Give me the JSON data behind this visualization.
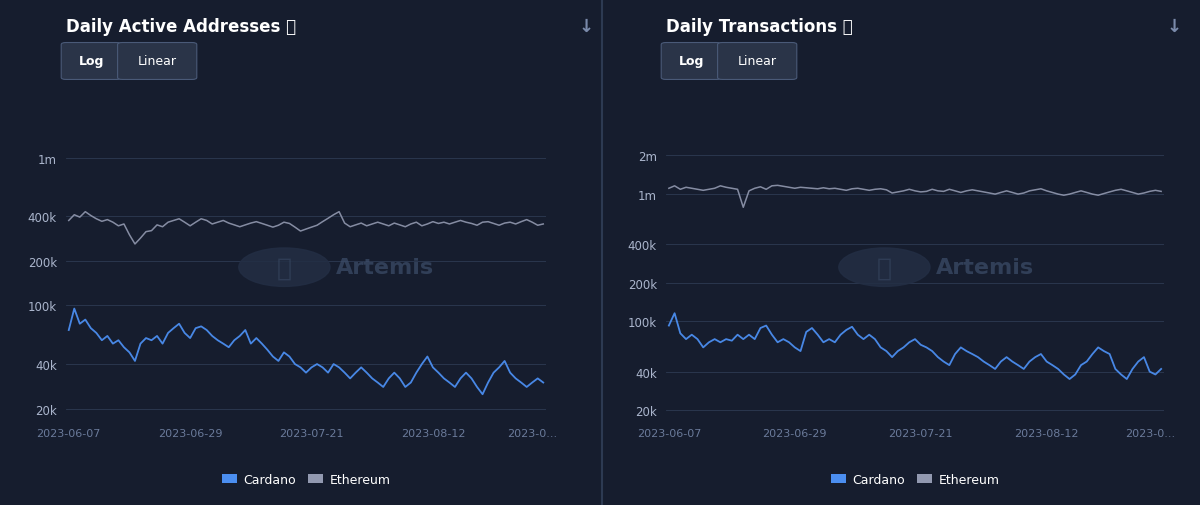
{
  "bg_color": "#161d2e",
  "text_color": "#ffffff",
  "grid_color": "#2d3a52",
  "title1": "Daily Active Addresses ⓘ",
  "title2": "Daily Transactions ⓘ",
  "cardano_color": "#4b8ef0",
  "ethereum_color": "#9299b0",
  "button_bg": "#252f45",
  "button_border": "#3a4a65",
  "x_labels": [
    "2023-06-07",
    "2023-06-29",
    "2023-07-21",
    "2023-08-12",
    "2023-0..."
  ],
  "addr_yticks_log": [
    "20k",
    "40k",
    "100k",
    "200k",
    "400k",
    "1m"
  ],
  "addr_yticks_vals": [
    20000,
    40000,
    100000,
    200000,
    400000,
    1000000
  ],
  "txn_yticks_log": [
    "20k",
    "40k",
    "100k",
    "200k",
    "400k",
    "1m",
    "2m"
  ],
  "txn_yticks_vals": [
    20000,
    40000,
    100000,
    200000,
    400000,
    1000000,
    2000000
  ],
  "eth_addr": [
    375000,
    410000,
    395000,
    430000,
    405000,
    385000,
    370000,
    380000,
    365000,
    345000,
    355000,
    300000,
    260000,
    285000,
    315000,
    320000,
    350000,
    340000,
    365000,
    375000,
    385000,
    365000,
    345000,
    365000,
    385000,
    375000,
    355000,
    365000,
    375000,
    360000,
    350000,
    340000,
    350000,
    360000,
    368000,
    358000,
    348000,
    338000,
    348000,
    365000,
    358000,
    338000,
    318000,
    328000,
    338000,
    348000,
    368000,
    388000,
    410000,
    430000,
    360000,
    340000,
    350000,
    360000,
    345000,
    355000,
    365000,
    355000,
    345000,
    360000,
    350000,
    340000,
    355000,
    365000,
    345000,
    355000,
    368000,
    358000,
    365000,
    355000,
    365000,
    375000,
    365000,
    358000,
    348000,
    365000,
    368000,
    358000,
    348000,
    360000,
    365000,
    355000,
    368000,
    380000,
    365000,
    348000,
    355000
  ],
  "ada_addr": [
    68000,
    95000,
    75000,
    80000,
    70000,
    65000,
    58000,
    62000,
    55000,
    58000,
    52000,
    48000,
    42000,
    55000,
    60000,
    58000,
    62000,
    55000,
    65000,
    70000,
    75000,
    65000,
    60000,
    70000,
    72000,
    68000,
    62000,
    58000,
    55000,
    52000,
    58000,
    62000,
    68000,
    55000,
    60000,
    55000,
    50000,
    45000,
    42000,
    48000,
    45000,
    40000,
    38000,
    35000,
    38000,
    40000,
    38000,
    35000,
    40000,
    38000,
    35000,
    32000,
    35000,
    38000,
    35000,
    32000,
    30000,
    28000,
    32000,
    35000,
    32000,
    28000,
    30000,
    35000,
    40000,
    45000,
    38000,
    35000,
    32000,
    30000,
    28000,
    32000,
    35000,
    32000,
    28000,
    25000,
    30000,
    35000,
    38000,
    42000,
    35000,
    32000,
    30000,
    28000,
    30000,
    32000,
    30000
  ],
  "eth_txn": [
    1100000,
    1150000,
    1080000,
    1120000,
    1100000,
    1080000,
    1060000,
    1080000,
    1100000,
    1150000,
    1120000,
    1100000,
    1080000,
    780000,
    1050000,
    1100000,
    1130000,
    1080000,
    1150000,
    1160000,
    1140000,
    1120000,
    1100000,
    1120000,
    1110000,
    1100000,
    1090000,
    1110000,
    1090000,
    1100000,
    1080000,
    1060000,
    1090000,
    1100000,
    1080000,
    1060000,
    1080000,
    1090000,
    1070000,
    1010000,
    1030000,
    1050000,
    1080000,
    1050000,
    1030000,
    1040000,
    1080000,
    1050000,
    1040000,
    1080000,
    1050000,
    1020000,
    1050000,
    1070000,
    1050000,
    1030000,
    1010000,
    990000,
    1020000,
    1050000,
    1020000,
    990000,
    1010000,
    1050000,
    1070000,
    1090000,
    1050000,
    1020000,
    990000,
    970000,
    990000,
    1020000,
    1050000,
    1020000,
    990000,
    970000,
    1000000,
    1030000,
    1060000,
    1080000,
    1050000,
    1020000,
    990000,
    1010000,
    1040000,
    1060000,
    1040000
  ],
  "ada_txn": [
    92000,
    115000,
    80000,
    72000,
    78000,
    72000,
    62000,
    68000,
    72000,
    68000,
    72000,
    70000,
    78000,
    72000,
    78000,
    72000,
    88000,
    92000,
    78000,
    68000,
    72000,
    68000,
    62000,
    58000,
    82000,
    88000,
    78000,
    68000,
    72000,
    68000,
    78000,
    85000,
    90000,
    78000,
    72000,
    78000,
    72000,
    62000,
    58000,
    52000,
    58000,
    62000,
    68000,
    72000,
    65000,
    62000,
    58000,
    52000,
    48000,
    45000,
    55000,
    62000,
    58000,
    55000,
    52000,
    48000,
    45000,
    42000,
    48000,
    52000,
    48000,
    45000,
    42000,
    48000,
    52000,
    55000,
    48000,
    45000,
    42000,
    38000,
    35000,
    38000,
    45000,
    48000,
    55000,
    62000,
    58000,
    55000,
    42000,
    38000,
    35000,
    42000,
    48000,
    52000,
    40000,
    38000,
    42000
  ]
}
